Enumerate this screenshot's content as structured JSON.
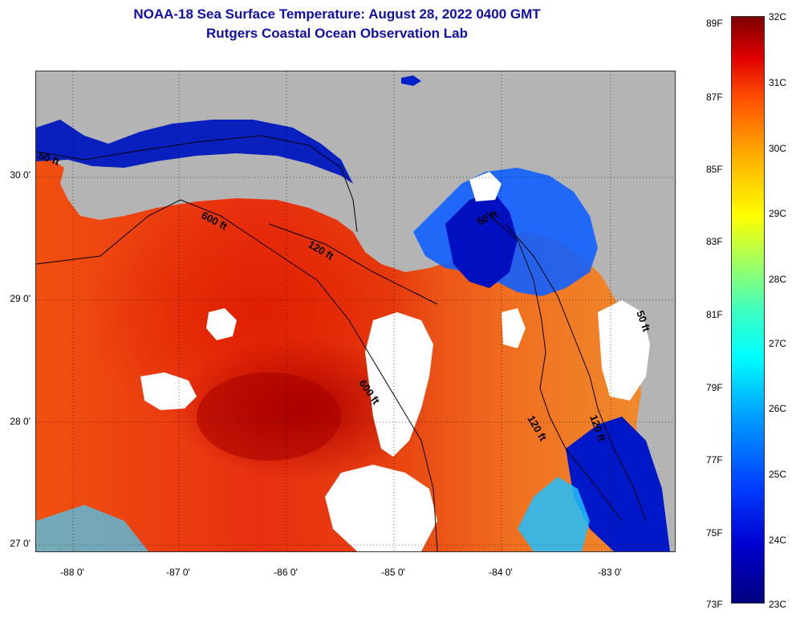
{
  "header": {
    "title": "NOAA-18 Sea Surface Temperature:  August 28, 2022 0400 GMT",
    "subtitle": "Rutgers Coastal Ocean Observation Lab"
  },
  "axes": {
    "latitude_ticks": [
      "30 0'",
      "29 0'",
      "28 0'",
      "27 0'"
    ],
    "longitude_ticks": [
      "-88 0'",
      "-87 0'",
      "-86 0'",
      "-85 0'",
      "-84 0'",
      "-83 0'"
    ]
  },
  "bathymetry_labels": [
    "50 ft",
    "600 ft",
    "120 ft",
    "600 ft",
    "120 ft",
    "50 ft",
    "120 ft",
    "50 ft"
  ],
  "colorbar": {
    "fahrenheit_labels": [
      "89F",
      "87F",
      "85F",
      "83F",
      "81F",
      "79F",
      "77F",
      "75F",
      "73F"
    ],
    "celsius_labels": [
      "32C",
      "31C",
      "30C",
      "29C",
      "28C",
      "27C",
      "26C",
      "25C",
      "24C",
      "23C"
    ],
    "min_c": 23,
    "max_c": 32
  },
  "colors": {
    "title": "#1010a8",
    "land": "#b4b4b4",
    "cloud": "#ffffff",
    "warm": "#e83010",
    "cool": "#0010c0"
  }
}
